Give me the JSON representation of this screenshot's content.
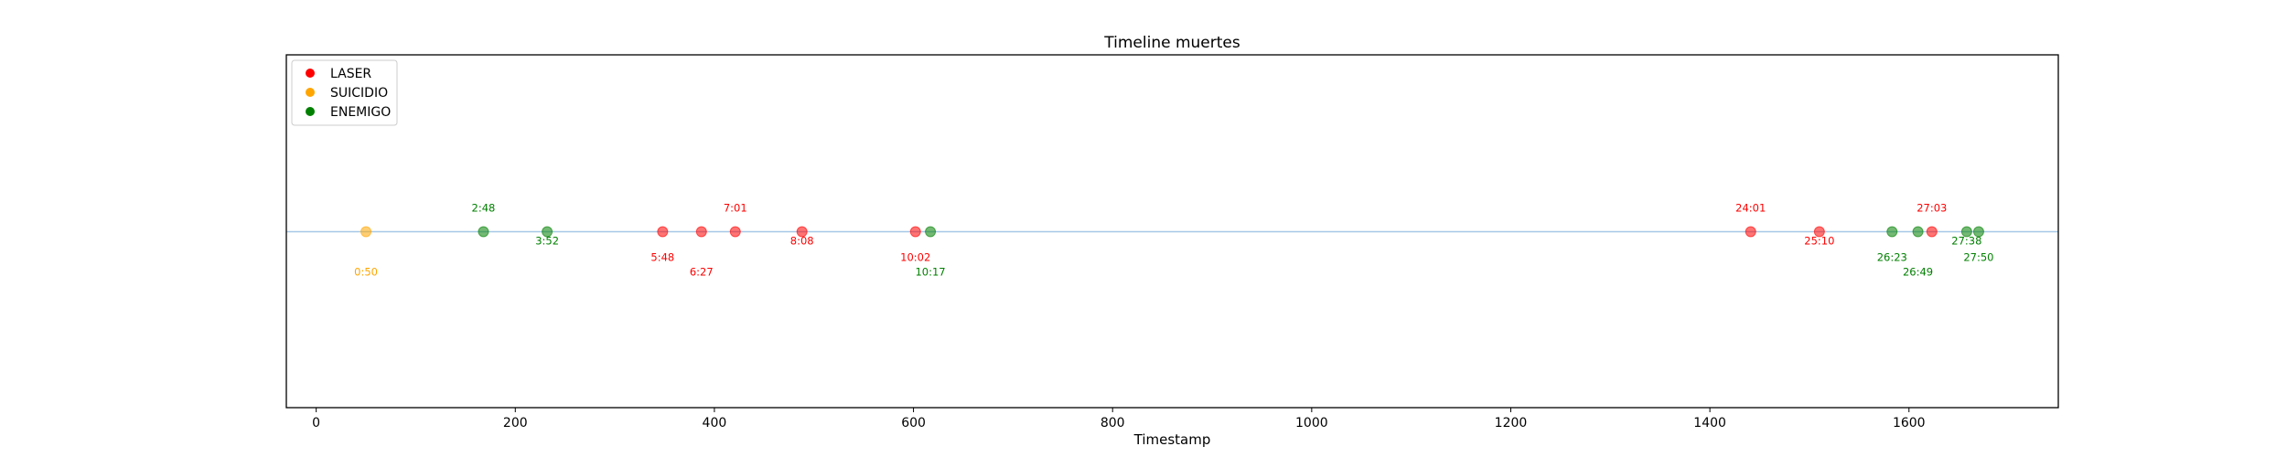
{
  "chart_data": {
    "type": "scatter",
    "title": "Timeline muertes",
    "xlabel": "Timestamp",
    "ylabel": "",
    "xlim": [
      -30,
      1750
    ],
    "xticks": [
      0,
      200,
      400,
      600,
      800,
      1000,
      1200,
      1400,
      1600
    ],
    "grid": false,
    "legend_position": "top-left",
    "baseline_color": "#a6c8e6",
    "series": [
      {
        "name": "LASER",
        "color": "#ff0000",
        "points": [
          {
            "x": 348,
            "label": "5:48"
          },
          {
            "x": 387,
            "label": "6:27"
          },
          {
            "x": 421,
            "label": "7:01"
          },
          {
            "x": 488,
            "label": "8:08"
          },
          {
            "x": 602,
            "label": "10:02"
          },
          {
            "x": 1441,
            "label": "24:01"
          },
          {
            "x": 1510,
            "label": "25:10"
          },
          {
            "x": 1623,
            "label": "27:03"
          }
        ]
      },
      {
        "name": "SUICIDIO",
        "color": "#ffa500",
        "points": [
          {
            "x": 50,
            "label": "0:50"
          }
        ]
      },
      {
        "name": "ENEMIGO",
        "color": "#008000",
        "points": [
          {
            "x": 168,
            "label": "2:48"
          },
          {
            "x": 232,
            "label": "3:52"
          },
          {
            "x": 617,
            "label": "10:17"
          },
          {
            "x": 1583,
            "label": "26:23"
          },
          {
            "x": 1609,
            "label": "26:49"
          },
          {
            "x": 1658,
            "label": "27:38"
          },
          {
            "x": 1670,
            "label": "27:50"
          }
        ]
      }
    ]
  }
}
